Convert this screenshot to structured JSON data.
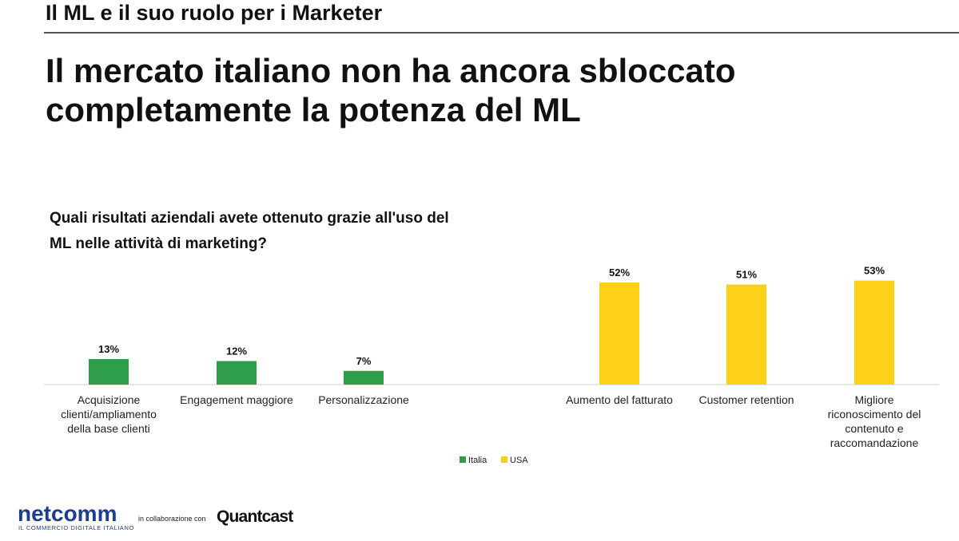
{
  "header": {
    "section_title": "Il ML e il suo ruolo per i Marketer",
    "headline": "Il mercato italiano non ha ancora sbloccato completamente la potenza del ML"
  },
  "chart_data": {
    "type": "bar",
    "title": "Quali risultati aziendali avete ottenuto grazie all'uso del ML nelle attività di marketing?",
    "xlabel": "",
    "ylabel": "",
    "ylim": [
      0,
      55
    ],
    "grid": false,
    "legend_position": "bottom-center",
    "categories": [
      "Acquisizione clienti/ampliamento della base clienti",
      "Engagement maggiore",
      "Personalizzazione",
      "Aumento del fatturato",
      "Customer retention",
      "Migliore riconoscimento del contenuto e raccomandazione"
    ],
    "category_lines": [
      [
        "Acquisizione",
        "clienti/ampliamento",
        "della base clienti"
      ],
      [
        "Engagement maggiore"
      ],
      [
        "Personalizzazione"
      ],
      [
        "Aumento del fatturato"
      ],
      [
        "Customer retention"
      ],
      [
        "Migliore",
        "riconoscimento del",
        "contenuto e",
        "raccomandazione"
      ]
    ],
    "series": [
      {
        "name": "Italia",
        "color": "#2e9e4a",
        "values": [
          13,
          12,
          7,
          null,
          null,
          null
        ]
      },
      {
        "name": "USA",
        "color": "#fdd116",
        "values": [
          null,
          null,
          null,
          52,
          51,
          53
        ]
      }
    ],
    "data_labels": [
      "13%",
      "12%",
      "7%",
      "52%",
      "51%",
      "53%"
    ]
  },
  "footer": {
    "logo_netcomm": "netcomm",
    "logo_netcomm_tagline": "IL COMMERCIO DIGITALE ITALIANO",
    "collab_text": "in collaborazione con",
    "logo_quantcast": "Quantcast"
  }
}
